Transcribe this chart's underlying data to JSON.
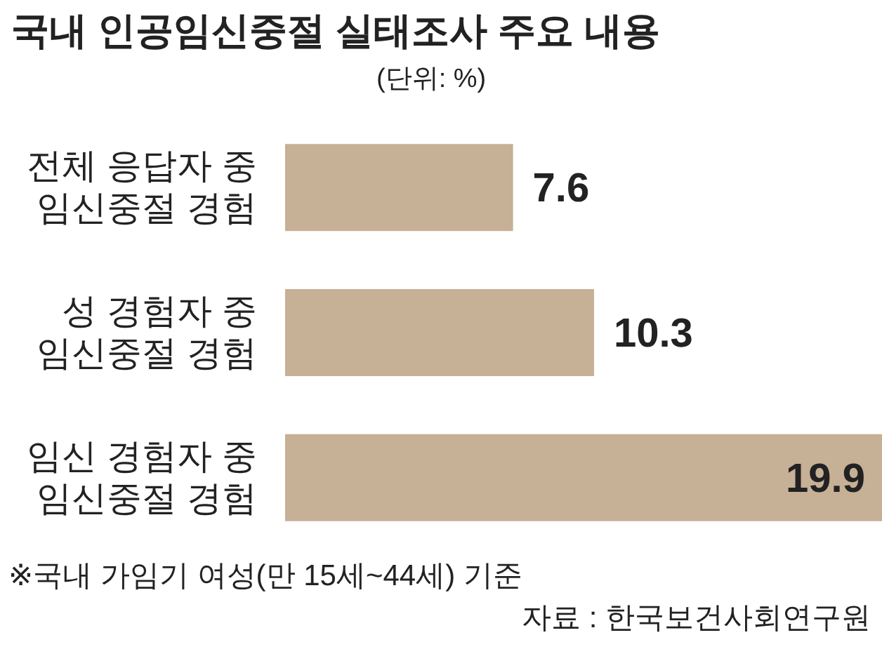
{
  "chart_data": {
    "type": "bar",
    "orientation": "horizontal",
    "title": "국내 인공임신중절 실태조사 주요 내용",
    "subtitle": "(단위: %)",
    "categories": [
      "전체 응답자 중\n임신중절 경험",
      "성 경험자 중\n임신중절 경험",
      "임신 경험자 중\n임신중절 경험"
    ],
    "values": [
      7.6,
      10.3,
      19.9
    ],
    "color": "#c6b096",
    "data_labels": true,
    "grid": false,
    "legend": false,
    "annotations": [
      "※국내 가임기 여성(만 15세~44세) 기준",
      "자료 : 한국보건사회연구원"
    ]
  }
}
